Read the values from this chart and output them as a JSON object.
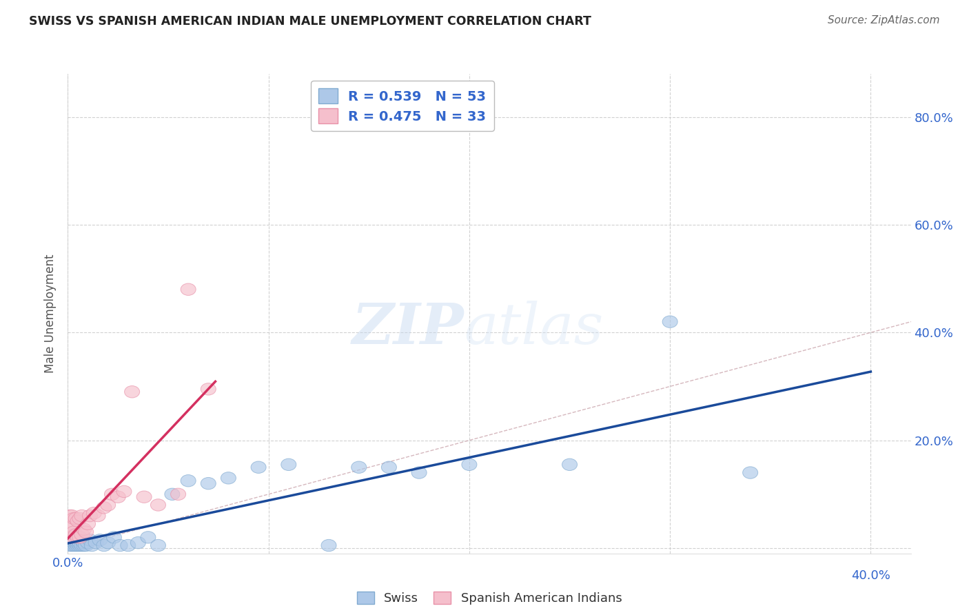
{
  "title": "SWISS VS SPANISH AMERICAN INDIAN MALE UNEMPLOYMENT CORRELATION CHART",
  "source": "Source: ZipAtlas.com",
  "ylabel": "Male Unemployment",
  "xlim": [
    0.0,
    0.42
  ],
  "ylim": [
    -0.01,
    0.88
  ],
  "xticks": [
    0.0,
    0.1,
    0.2,
    0.3,
    0.4
  ],
  "yticks": [
    0.0,
    0.2,
    0.4,
    0.6,
    0.8
  ],
  "xtick_labels_left": [
    "0.0%",
    "",
    "",
    "",
    ""
  ],
  "xtick_labels_right": [
    "",
    "",
    "",
    "",
    "40.0%"
  ],
  "ytick_labels_right": [
    "",
    "20.0%",
    "40.0%",
    "60.0%",
    "80.0%"
  ],
  "background_color": "#ffffff",
  "grid_color": "#cccccc",
  "swiss_color": "#adc8e8",
  "swiss_edge_color": "#80aad0",
  "swiss_R": 0.539,
  "swiss_N": 53,
  "swiss_line_color": "#1a4a9a",
  "sai_color": "#f5bfcc",
  "sai_edge_color": "#e890a8",
  "sai_R": 0.475,
  "sai_N": 33,
  "sai_line_color": "#d43060",
  "diagonal_color": "#c8a0a8",
  "swiss_x": [
    0.001,
    0.001,
    0.001,
    0.002,
    0.002,
    0.002,
    0.002,
    0.003,
    0.003,
    0.003,
    0.003,
    0.003,
    0.004,
    0.004,
    0.004,
    0.005,
    0.005,
    0.005,
    0.006,
    0.006,
    0.006,
    0.007,
    0.007,
    0.008,
    0.008,
    0.009,
    0.01,
    0.011,
    0.012,
    0.014,
    0.016,
    0.018,
    0.02,
    0.023,
    0.026,
    0.03,
    0.035,
    0.04,
    0.045,
    0.052,
    0.06,
    0.07,
    0.08,
    0.095,
    0.11,
    0.13,
    0.145,
    0.16,
    0.175,
    0.2,
    0.25,
    0.3,
    0.34
  ],
  "swiss_y": [
    0.005,
    0.01,
    0.015,
    0.005,
    0.01,
    0.015,
    0.02,
    0.005,
    0.01,
    0.015,
    0.02,
    0.025,
    0.005,
    0.01,
    0.02,
    0.005,
    0.01,
    0.015,
    0.005,
    0.01,
    0.02,
    0.005,
    0.015,
    0.005,
    0.01,
    0.005,
    0.01,
    0.015,
    0.005,
    0.01,
    0.015,
    0.005,
    0.01,
    0.02,
    0.005,
    0.005,
    0.01,
    0.02,
    0.005,
    0.1,
    0.125,
    0.12,
    0.13,
    0.15,
    0.155,
    0.005,
    0.15,
    0.15,
    0.14,
    0.155,
    0.155,
    0.42,
    0.14
  ],
  "sai_x": [
    0.001,
    0.001,
    0.001,
    0.002,
    0.002,
    0.002,
    0.003,
    0.003,
    0.004,
    0.004,
    0.005,
    0.005,
    0.006,
    0.006,
    0.007,
    0.007,
    0.008,
    0.009,
    0.01,
    0.011,
    0.013,
    0.015,
    0.018,
    0.02,
    0.022,
    0.025,
    0.028,
    0.032,
    0.038,
    0.045,
    0.055,
    0.06,
    0.07
  ],
  "sai_y": [
    0.02,
    0.04,
    0.06,
    0.02,
    0.04,
    0.06,
    0.03,
    0.055,
    0.025,
    0.055,
    0.02,
    0.05,
    0.02,
    0.055,
    0.025,
    0.06,
    0.035,
    0.03,
    0.045,
    0.06,
    0.065,
    0.06,
    0.075,
    0.08,
    0.1,
    0.095,
    0.105,
    0.29,
    0.095,
    0.08,
    0.1,
    0.48,
    0.295
  ]
}
